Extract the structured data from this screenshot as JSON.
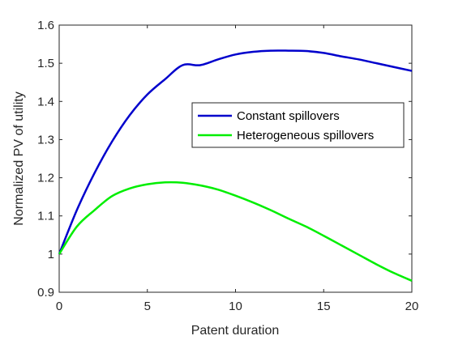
{
  "chart_data": {
    "type": "line",
    "xlabel": "Patent duration",
    "ylabel": "Normalized PV of utility",
    "xlim": [
      0,
      20
    ],
    "ylim": [
      0.9,
      1.6
    ],
    "xticks": [
      "0",
      "5",
      "10",
      "15",
      "20"
    ],
    "yticks": [
      "0.9",
      "1",
      "1.1",
      "1.2",
      "1.3",
      "1.4",
      "1.5",
      "1.6"
    ],
    "grid": false,
    "legend_position": "right",
    "x": [
      0,
      1,
      2,
      3,
      4,
      5,
      6,
      7,
      8,
      9,
      10,
      11,
      12,
      13,
      14,
      15,
      16,
      17,
      18,
      19,
      20
    ],
    "series": [
      {
        "name": "Constant spillovers",
        "color": "#0000cc",
        "values": [
          1.0,
          1.115,
          1.212,
          1.295,
          1.364,
          1.418,
          1.458,
          1.495,
          1.495,
          1.51,
          1.523,
          1.53,
          1.533,
          1.533,
          1.532,
          1.527,
          1.518,
          1.51,
          1.5,
          1.49,
          1.48
        ]
      },
      {
        "name": "Heterogeneous spillovers",
        "color": "#00ee00",
        "values": [
          1.0,
          1.072,
          1.115,
          1.152,
          1.172,
          1.183,
          1.188,
          1.187,
          1.18,
          1.169,
          1.153,
          1.135,
          1.115,
          1.093,
          1.072,
          1.048,
          1.023,
          0.998,
          0.973,
          0.95,
          0.93
        ]
      }
    ]
  }
}
